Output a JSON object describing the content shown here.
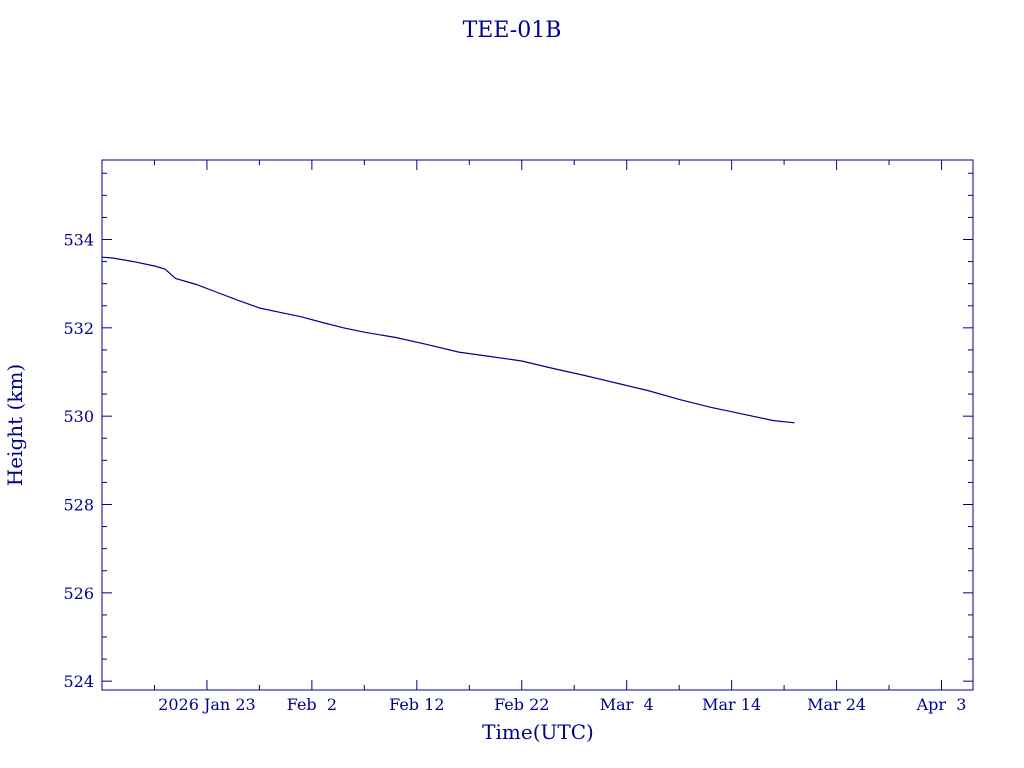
{
  "chart_data": {
    "type": "line",
    "title": "TEE-01B",
    "xlabel": "Time(UTC)",
    "ylabel": "Height (km)",
    "xlim": [
      "2026-01-13",
      "2026-04-06"
    ],
    "ylim": [
      523.8,
      535.8
    ],
    "grid": false,
    "color": "#00008b",
    "x_ticks": [
      {
        "date": "2026-01-23",
        "label": "2026 Jan 23"
      },
      {
        "date": "2026-02-02",
        "label": "Feb  2"
      },
      {
        "date": "2026-02-12",
        "label": "Feb 12"
      },
      {
        "date": "2026-02-22",
        "label": "Feb 22"
      },
      {
        "date": "2026-03-04",
        "label": "Mar  4"
      },
      {
        "date": "2026-03-14",
        "label": "Mar 14"
      },
      {
        "date": "2026-03-24",
        "label": "Mar 24"
      },
      {
        "date": "2026-04-03",
        "label": "Apr  3"
      }
    ],
    "y_ticks": [
      524,
      526,
      528,
      530,
      532,
      534
    ],
    "series": [
      {
        "x": [
          "2026-01-13",
          "2026-01-14",
          "2026-01-16",
          "2026-01-18",
          "2026-01-19",
          "2026-01-20",
          "2026-01-21",
          "2026-01-22",
          "2026-01-24",
          "2026-01-26",
          "2026-01-28",
          "2026-01-30",
          "2026-02-01",
          "2026-02-03",
          "2026-02-05",
          "2026-02-07",
          "2026-02-10",
          "2026-02-13",
          "2026-02-16",
          "2026-02-19",
          "2026-02-22",
          "2026-02-25",
          "2026-02-28",
          "2026-03-03",
          "2026-03-06",
          "2026-03-09",
          "2026-03-12",
          "2026-03-14",
          "2026-03-16",
          "2026-03-18",
          "2026-03-20"
        ],
        "y": [
          533.6,
          533.58,
          533.5,
          533.4,
          533.33,
          533.12,
          533.05,
          532.98,
          532.8,
          532.62,
          532.45,
          532.35,
          532.25,
          532.12,
          532.0,
          531.9,
          531.78,
          531.62,
          531.45,
          531.35,
          531.25,
          531.08,
          530.92,
          530.75,
          530.58,
          530.38,
          530.2,
          530.1,
          530.0,
          529.9,
          529.85
        ]
      }
    ]
  }
}
